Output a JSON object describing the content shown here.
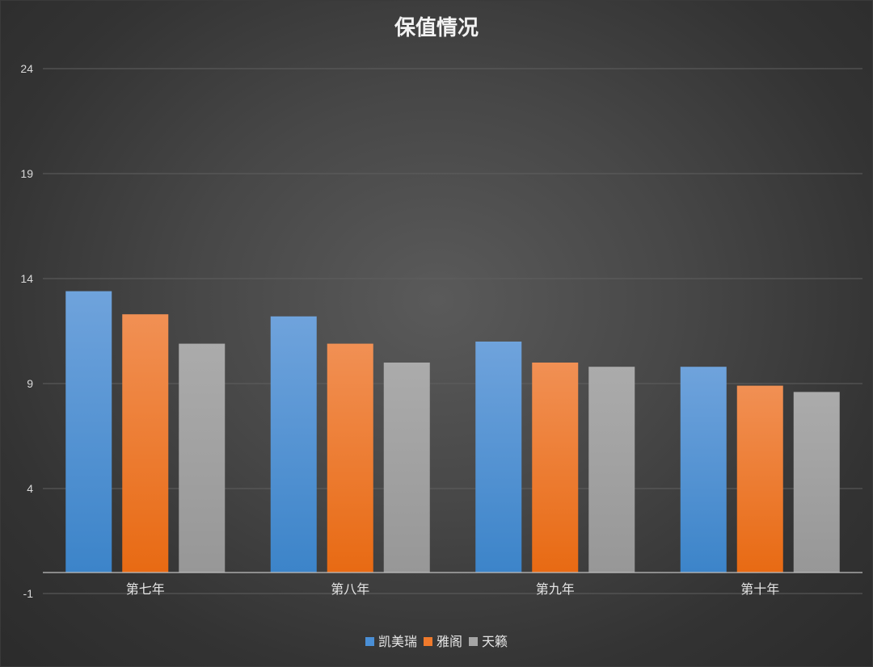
{
  "chart_data": {
    "type": "bar",
    "title": "保值情况",
    "categories": [
      "第七年",
      "第八年",
      "第九年",
      "第十年"
    ],
    "series": [
      {
        "name": "凯美瑞",
        "values": [
          13.4,
          12.2,
          11.0,
          9.8
        ]
      },
      {
        "name": "雅阁",
        "values": [
          12.3,
          10.9,
          10.0,
          8.9
        ]
      },
      {
        "name": "天籁",
        "values": [
          10.9,
          10.0,
          9.8,
          8.6
        ]
      }
    ],
    "ylim": [
      -1,
      24
    ],
    "yticks": [
      -1,
      4,
      9,
      14,
      19,
      24
    ],
    "grid": true,
    "legend_position": "bottom",
    "colors": {
      "series": [
        {
          "top": "#6fa3dc",
          "bottom": "#3c84c9"
        },
        {
          "top": "#f19054",
          "bottom": "#e86a13"
        },
        {
          "top": "#ababab",
          "bottom": "#979797"
        }
      ],
      "legend": [
        "#4a8fd6",
        "#ef7a2c",
        "#a5a5a5"
      ]
    }
  }
}
